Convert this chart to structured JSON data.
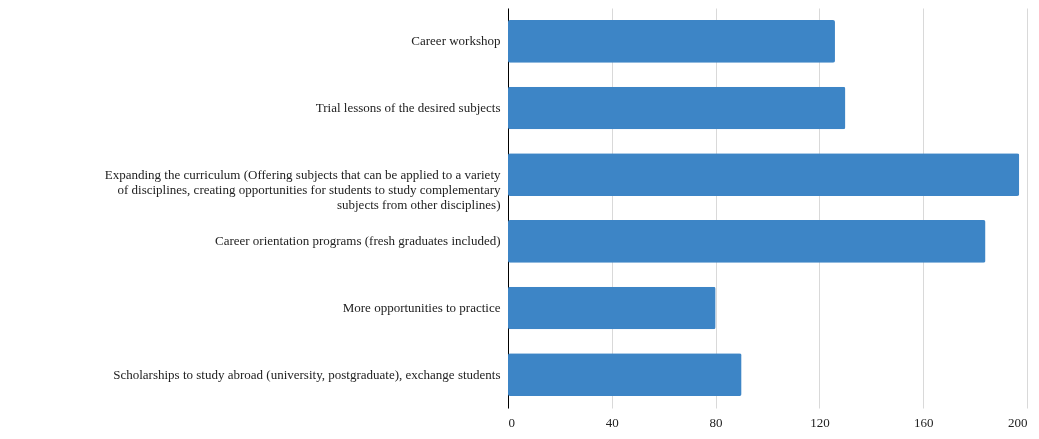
{
  "chart_data": {
    "type": "bar",
    "orientation": "horizontal",
    "categories": [
      "Career workshop",
      "Trial lessons of the desired subjects",
      "Expanding the curriculum (Offering subjects that can be applied to a variety of disciplines, creating opportunities for students to study complementary subjects from other disciplines)",
      "Career orientation programs (fresh graduates included)",
      "More opportunities to practice",
      "Scholarships to study abroad (university, postgraduate), exchange students"
    ],
    "values": [
      126,
      130,
      197,
      184,
      80,
      90
    ],
    "color": "#3d85c6",
    "xlim": [
      0,
      200
    ],
    "xticks": [
      0,
      40,
      80,
      120,
      160,
      200
    ],
    "grid": "x"
  }
}
